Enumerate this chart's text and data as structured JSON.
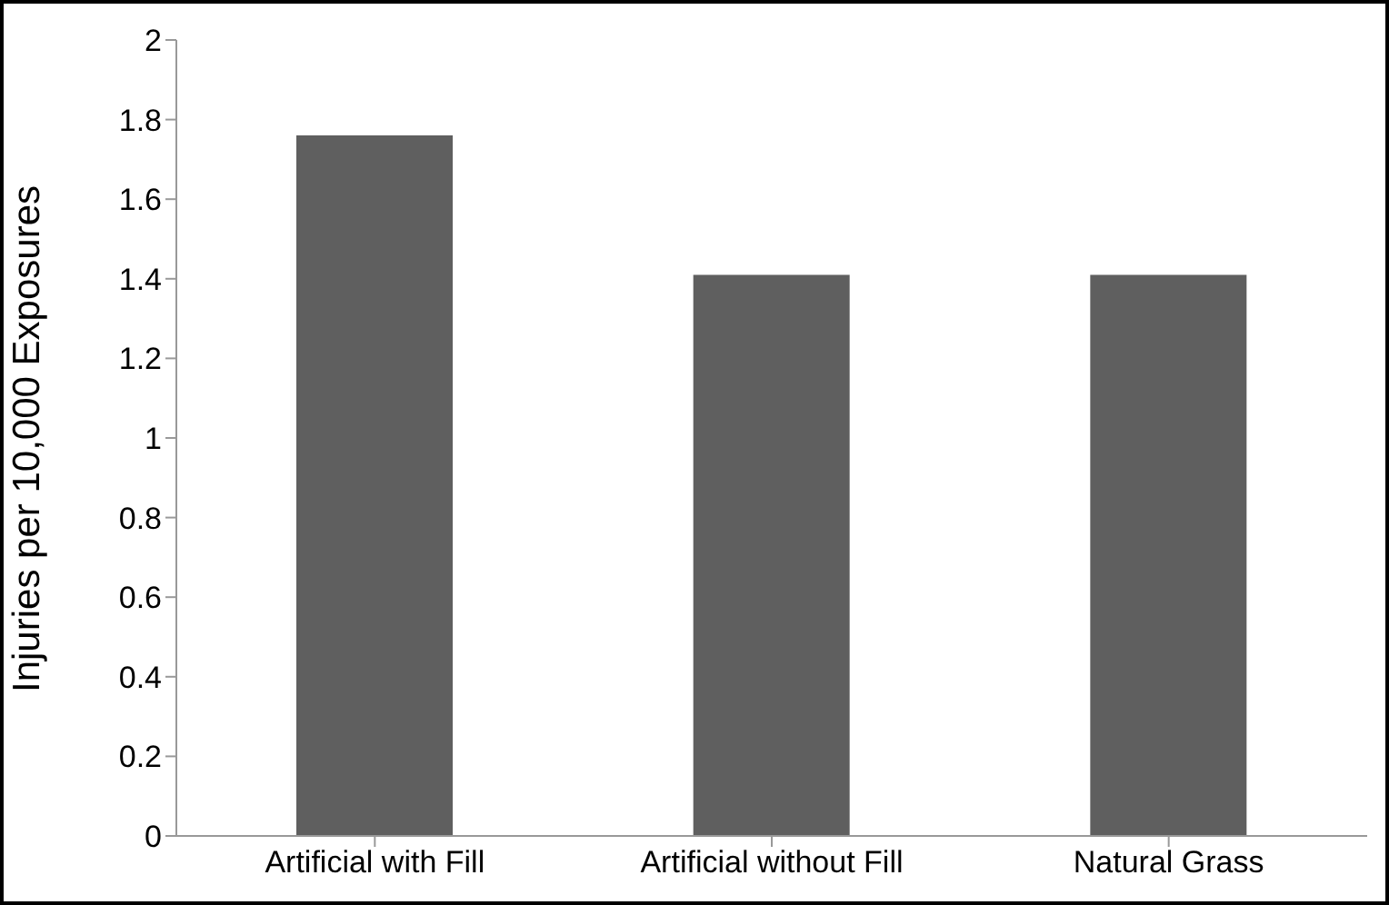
{
  "chart_data": {
    "type": "bar",
    "ylabel": "Injuries per 10,000 Exposures",
    "categories": [
      "Artificial with Fill",
      "Artificial without Fill",
      "Natural Grass"
    ],
    "values": [
      1.76,
      1.41,
      1.41
    ],
    "color": "#5f5f5f",
    "ylim": [
      0,
      2
    ],
    "yticks": [
      0,
      0.2,
      0.4,
      0.6,
      0.8,
      1,
      1.2,
      1.4,
      1.6,
      1.8,
      2
    ],
    "grid": false,
    "legend": false
  }
}
